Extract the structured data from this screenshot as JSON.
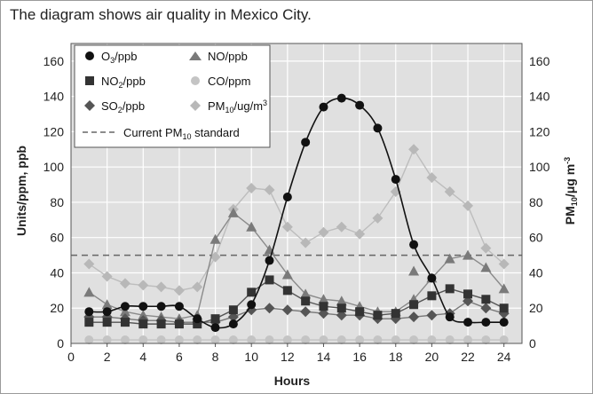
{
  "caption": "The diagram shows air quality in Mexico City.",
  "chart_data": {
    "type": "line",
    "xlabel": "Hours",
    "ylabel": "Units/ppm, ppb",
    "y2label": "PM10/μg m-3",
    "xlim": [
      0,
      25
    ],
    "ylim": [
      0,
      170
    ],
    "x_ticks": [
      0,
      2,
      4,
      6,
      8,
      10,
      12,
      14,
      16,
      18,
      20,
      22,
      24
    ],
    "y_ticks": [
      0,
      20,
      40,
      60,
      80,
      100,
      120,
      140,
      160
    ],
    "grid": true,
    "legend_position": "top-left",
    "standard_line": {
      "name": "Current PM10 standard",
      "value": 50
    },
    "series": [
      {
        "name": "O3/ppb",
        "key": "o3",
        "marker": "circle",
        "color": "#111111",
        "line": "#111111",
        "smooth": true,
        "x": [
          1,
          2,
          3,
          4,
          5,
          6,
          7,
          8,
          9,
          10,
          11,
          12,
          13,
          14,
          15,
          16,
          17,
          18,
          19,
          20,
          21,
          22,
          23,
          24
        ],
        "values": [
          18,
          18,
          21,
          21,
          21,
          21,
          14,
          9,
          11,
          22,
          47,
          83,
          114,
          134,
          139,
          135,
          122,
          93,
          56,
          37,
          15,
          12,
          12,
          12
        ]
      },
      {
        "name": "NO2/ppb",
        "key": "no2",
        "marker": "square",
        "color": "#333333",
        "line": "#555555",
        "x": [
          1,
          2,
          3,
          4,
          5,
          6,
          7,
          8,
          9,
          10,
          11,
          12,
          13,
          14,
          15,
          16,
          17,
          18,
          19,
          20,
          21,
          22,
          23,
          24
        ],
        "values": [
          12,
          12,
          12,
          11,
          11,
          11,
          11,
          14,
          19,
          29,
          36,
          30,
          24,
          21,
          20,
          18,
          16,
          17,
          22,
          27,
          31,
          28,
          25,
          20
        ]
      },
      {
        "name": "SO2/ppb",
        "key": "so2",
        "marker": "diamond",
        "color": "#555555",
        "line": "#777777",
        "x": [
          1,
          2,
          3,
          4,
          5,
          6,
          7,
          8,
          9,
          10,
          11,
          12,
          13,
          14,
          15,
          16,
          17,
          18,
          19,
          20,
          21,
          22,
          23,
          24
        ],
        "values": [
          15,
          15,
          14,
          13,
          13,
          12,
          12,
          12,
          15,
          19,
          20,
          19,
          18,
          17,
          16,
          16,
          14,
          14,
          15,
          16,
          17,
          24,
          20,
          17
        ]
      },
      {
        "name": "NO/ppb",
        "key": "no",
        "marker": "triangle",
        "color": "#7a7a7a",
        "line": "#8a8a8a",
        "x": [
          1,
          2,
          3,
          4,
          5,
          6,
          7,
          8,
          9,
          10,
          11,
          12,
          13,
          14,
          15,
          16,
          17,
          18,
          19,
          20,
          21,
          22,
          23,
          24
        ],
        "values": [
          29,
          22,
          18,
          16,
          15,
          14,
          16,
          59,
          74,
          66,
          53,
          39,
          28,
          25,
          24,
          21,
          18,
          18,
          25,
          37,
          48,
          50,
          43,
          31
        ],
        "isolated_points": [
          {
            "x": 19,
            "y": 41
          }
        ]
      },
      {
        "name": "CO/ppm",
        "key": "co",
        "marker": "circle",
        "color": "#c4c4c4",
        "line": "#c4c4c4",
        "x": [
          1,
          2,
          3,
          4,
          5,
          6,
          7,
          8,
          9,
          10,
          11,
          12,
          13,
          14,
          15,
          16,
          17,
          18,
          19,
          20,
          21,
          22,
          23,
          24
        ],
        "values": [
          2,
          2,
          2,
          2,
          2,
          2,
          2,
          2,
          2,
          2,
          2,
          2,
          2,
          2,
          2,
          2,
          2,
          2,
          2,
          2,
          2,
          2,
          2,
          2
        ]
      },
      {
        "name": "PM10/ug/m3",
        "key": "pm10",
        "marker": "diamond",
        "color": "#b8b8b8",
        "line": "#bdbdbd",
        "x": [
          1,
          2,
          3,
          4,
          5,
          6,
          7,
          8,
          9,
          10,
          11,
          12,
          13,
          14,
          15,
          16,
          17,
          18,
          19,
          20,
          21,
          22,
          23,
          24
        ],
        "values": [
          45,
          38,
          34,
          33,
          32,
          30,
          32,
          49,
          76,
          88,
          87,
          66,
          57,
          63,
          66,
          62,
          71,
          86,
          110,
          94,
          86,
          78,
          54,
          45
        ]
      }
    ]
  }
}
